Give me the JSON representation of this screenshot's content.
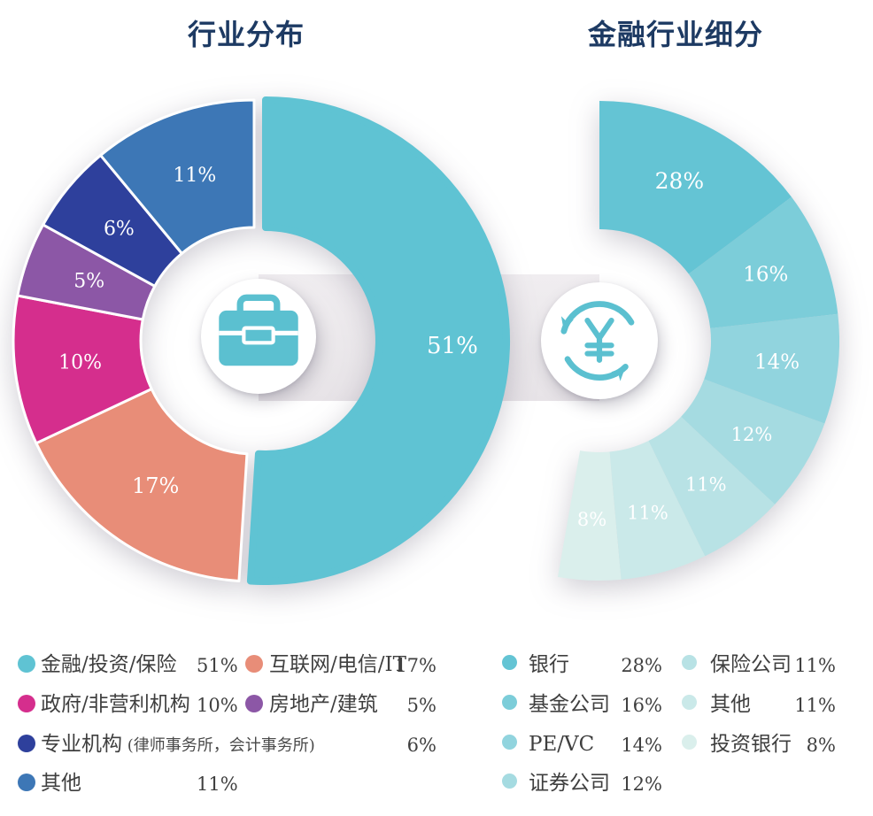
{
  "style": {
    "background": "#ffffff",
    "title_color": "#1d3a63",
    "legend_text_color": "#3f3f3f",
    "connector_band_color": "#ece9ec",
    "slice_label_color": "#ffffff",
    "icon_color": "#5bc0d0"
  },
  "chart_data": [
    {
      "type": "pie",
      "variant": "donut",
      "title": "行业分布",
      "unit": "%",
      "start_angle": 0,
      "total_angle": 360,
      "legend_position": "bottom",
      "center_icon": "briefcase-icon",
      "segments": [
        {
          "label": "金融/投资/保险",
          "value": 51,
          "pct": "51%",
          "color": "#5fc3d3",
          "exploded": true
        },
        {
          "label": "互联网/电信/IT",
          "value": 17,
          "pct": "17%",
          "color": "#e88d78"
        },
        {
          "label": "政府/非营利机构",
          "value": 10,
          "pct": "10%",
          "color": "#d52e8d"
        },
        {
          "label": "房地产/建筑",
          "value": 5,
          "pct": "5%",
          "color": "#8c57a6"
        },
        {
          "label": "专业机构",
          "note": "(律师事务所，会计事务所)",
          "value": 6,
          "pct": "6%",
          "color": "#2e409c"
        },
        {
          "label": "其他",
          "value": 11,
          "pct": "11%",
          "color": "#3d77b6"
        }
      ]
    },
    {
      "type": "pie",
      "variant": "donut",
      "title": "金融行业细分",
      "unit": "%",
      "start_angle": 0,
      "total_angle": 190,
      "legend_position": "bottom",
      "center_icon": "yuan-refresh-icon",
      "segments": [
        {
          "label": "银行",
          "value": 28,
          "pct": "28%",
          "color": "#64c4d4"
        },
        {
          "label": "基金公司",
          "value": 16,
          "pct": "16%",
          "color": "#7ccdd9"
        },
        {
          "label": "PE/VC",
          "value": 14,
          "pct": "14%",
          "color": "#91d4de"
        },
        {
          "label": "证券公司",
          "value": 12,
          "pct": "12%",
          "color": "#a5dbe1"
        },
        {
          "label": "保险公司",
          "value": 11,
          "pct": "11%",
          "color": "#b8e2e5"
        },
        {
          "label": "其他",
          "value": 11,
          "pct": "11%",
          "color": "#cae9e9"
        },
        {
          "label": "投资银行",
          "value": 8,
          "pct": "8%",
          "color": "#daefec"
        }
      ]
    }
  ]
}
